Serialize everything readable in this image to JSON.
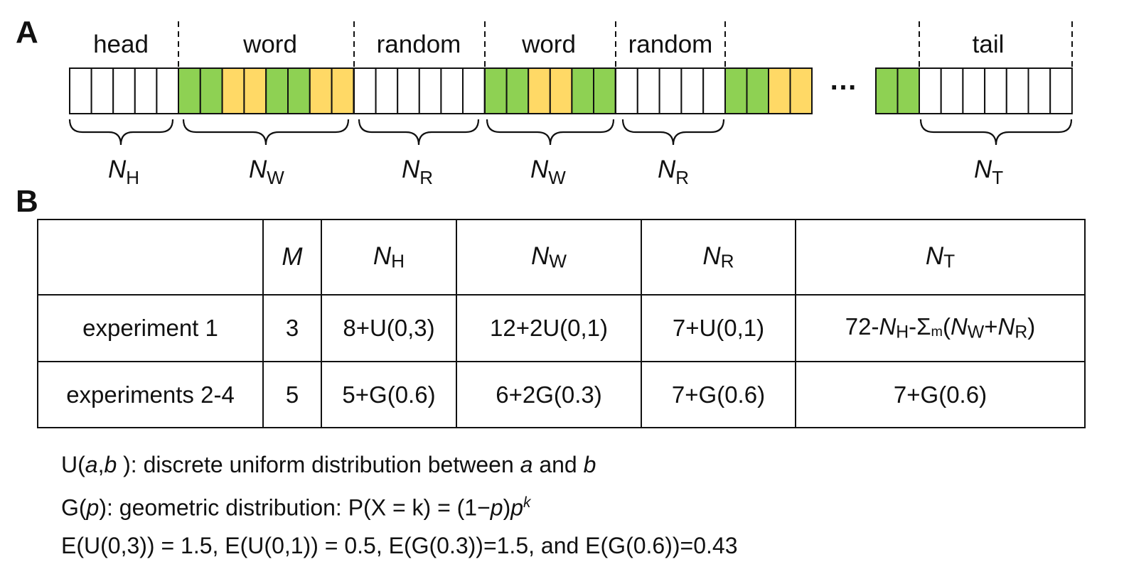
{
  "panels": {
    "a": "A",
    "b": "B"
  },
  "colors": {
    "green": "#8ed153",
    "yellow": "#ffd966",
    "stroke": "#111111"
  },
  "sequence": {
    "segment_labels": [
      "head",
      "word",
      "random",
      "word",
      "random",
      "tail"
    ],
    "ellipsis": "…",
    "brace_symbol": "N",
    "brace_labels": [
      {
        "var": "N",
        "sub": "H"
      },
      {
        "var": "N",
        "sub": "W"
      },
      {
        "var": "N",
        "sub": "R"
      },
      {
        "var": "N",
        "sub": "W"
      },
      {
        "var": "N",
        "sub": "R"
      },
      {
        "var": "N",
        "sub": "T"
      }
    ],
    "groups": [
      {
        "name": "head",
        "cells": [
          "white",
          "white",
          "white",
          "white",
          "white"
        ]
      },
      {
        "name": "word",
        "cells": [
          "green",
          "green",
          "yellow",
          "yellow",
          "green",
          "green",
          "yellow",
          "yellow"
        ]
      },
      {
        "name": "random",
        "cells": [
          "white",
          "white",
          "white",
          "white",
          "white",
          "white"
        ]
      },
      {
        "name": "word",
        "cells": [
          "green",
          "green",
          "yellow",
          "yellow",
          "green",
          "green"
        ]
      },
      {
        "name": "random",
        "cells": [
          "white",
          "white",
          "white",
          "white",
          "white"
        ]
      },
      {
        "name": "word-partial",
        "cells": [
          "green",
          "green",
          "yellow",
          "yellow"
        ]
      },
      {
        "name": "word-end",
        "cells": [
          "green",
          "green"
        ]
      },
      {
        "name": "tail",
        "cells": [
          "white",
          "white",
          "white",
          "white",
          "white",
          "white",
          "white"
        ]
      }
    ]
  },
  "table": {
    "header": {
      "col0": "",
      "m": "M",
      "nh": {
        "var": "N",
        "sub": "H"
      },
      "nw": {
        "var": "N",
        "sub": "W"
      },
      "nr": {
        "var": "N",
        "sub": "R"
      },
      "nt": {
        "var": "N",
        "sub": "T"
      }
    },
    "rows": [
      {
        "label": "experiment 1",
        "m": "3",
        "nh": "8+U(0,3)",
        "nw": "12+2U(0,1)",
        "nr": "7+U(0,1)",
        "nt": {
          "p1": "72-",
          "v1": "N",
          "s1": "H",
          "p2": "-Σ",
          "s2": "m",
          "p3": "(",
          "v3": "N",
          "s3": "W",
          "p4": "+",
          "v4": "N",
          "s4": "R",
          "p5": ")"
        }
      },
      {
        "label": "experiments 2-4",
        "m": "5",
        "nh": "5+G(0.6)",
        "nw": "6+2G(0.3)",
        "nr": "7+G(0.6)",
        "nt": "7+G(0.6)"
      }
    ]
  },
  "notes": {
    "line1": {
      "p1": "U(",
      "a": "a",
      "comma": ",",
      "b": "b",
      "p2": " ): discrete uniform distribution between ",
      "a2": "a",
      "and": " and ",
      "b2": "b"
    },
    "line2": {
      "p1": "G(",
      "p": "p",
      "p2": "): geometric distribution: P(X = k) = (1−",
      "p3": "p",
      "p4": ")",
      "p5": "p",
      "k": "k"
    },
    "line3": "E(U(0,3)) = 1.5, E(U(0,1)) = 0.5, E(G(0.3))=1.5, and E(G(0.6))=0.43"
  }
}
